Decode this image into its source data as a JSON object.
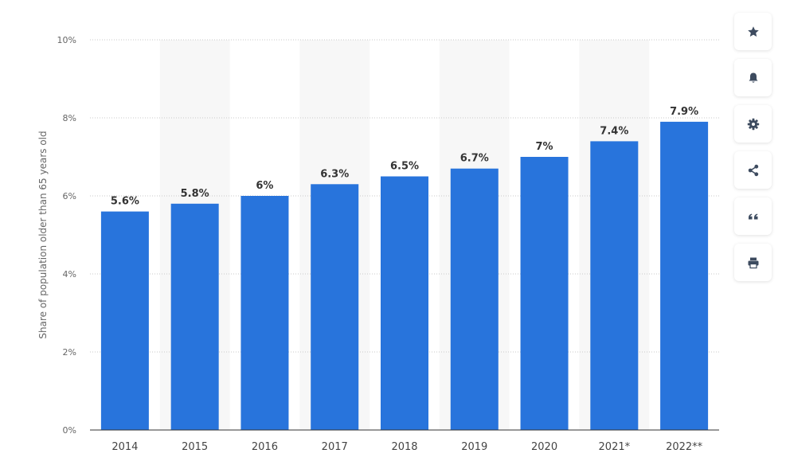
{
  "chart_data": {
    "type": "bar",
    "categories": [
      "2014",
      "2015",
      "2016",
      "2017",
      "2018",
      "2019",
      "2020",
      "2021*",
      "2022**"
    ],
    "values": [
      5.6,
      5.8,
      6.0,
      6.3,
      6.5,
      6.7,
      7.0,
      7.4,
      7.9
    ],
    "data_labels": [
      "5.6%",
      "5.8%",
      "6%",
      "6.3%",
      "6.5%",
      "6.7%",
      "7%",
      "7.4%",
      "7.9%"
    ],
    "ylabel": "Share of population older than 65 years old",
    "ylim": [
      0,
      10
    ],
    "yticks": [
      0,
      2,
      4,
      6,
      8,
      10
    ],
    "ytick_labels": [
      "0%",
      "2%",
      "4%",
      "6%",
      "8%",
      "10%"
    ],
    "bar_color": "#2874dc",
    "alt_band_color": "#f7f7f7",
    "grid": true,
    "legend": "none"
  },
  "toolbar": {
    "items": [
      {
        "icon": "star-icon"
      },
      {
        "icon": "bell-icon"
      },
      {
        "icon": "gear-icon"
      },
      {
        "icon": "share-icon"
      },
      {
        "icon": "quote-icon"
      },
      {
        "icon": "print-icon"
      }
    ],
    "icon_color": "#3d4b5f"
  }
}
